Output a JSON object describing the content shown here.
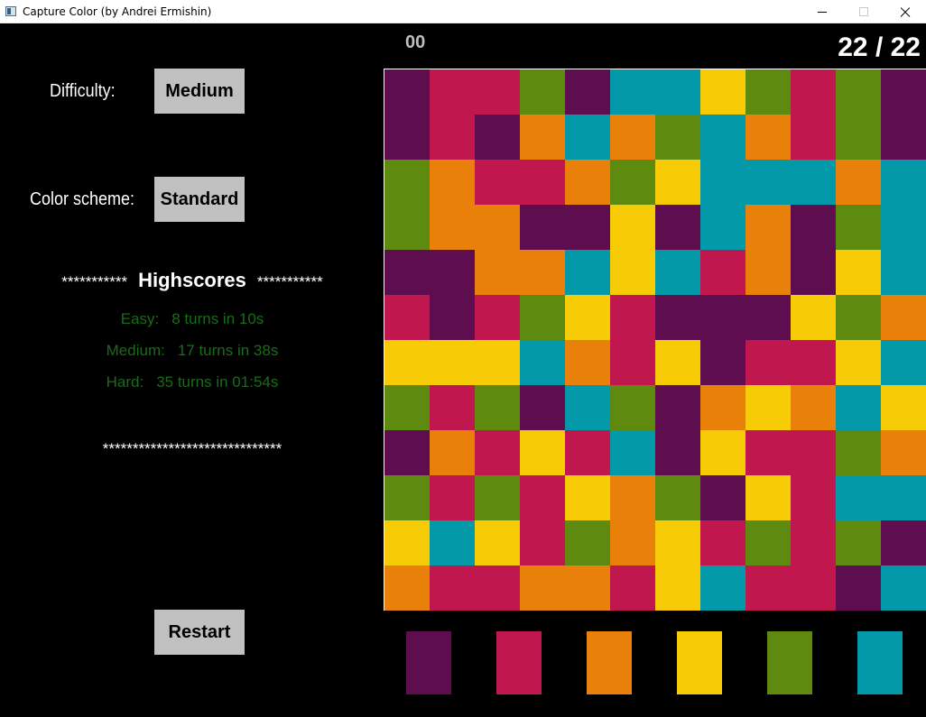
{
  "window": {
    "title": "Capture Color (by Andrei Ermishin)"
  },
  "settings": {
    "difficulty_label": "Difficulty:",
    "difficulty_value": "Medium",
    "color_scheme_label": "Color scheme:",
    "color_scheme_value": "Standard"
  },
  "highscores": {
    "stars_left": "***********",
    "title": "Highscores",
    "stars_right": "***********",
    "easy_label": "Easy:",
    "easy_value": "8 turns in 10s",
    "medium_label": "Medium:",
    "medium_value": "17 turns in 38s",
    "hard_label": "Hard:",
    "hard_value": "35 turns in 01:54s",
    "footer_stars": "******************************"
  },
  "controls": {
    "restart_label": "Restart"
  },
  "status": {
    "time": "00",
    "turns": "22 / 22"
  },
  "colors": {
    "P": "#5e0d4f",
    "R": "#c0174f",
    "O": "#e8800a",
    "Y": "#f7cb05",
    "G": "#5f8a10",
    "C": "#0499a8"
  },
  "palette": [
    "P",
    "R",
    "O",
    "Y",
    "G",
    "C"
  ],
  "board": [
    "PRRGPCCYGRGP",
    "PRPOCOGCORGP",
    "GORROGYCCCOC",
    "GOOPPYPCOPGC",
    "PPOOCYCROPYC",
    "RPRGYRPPPYGO",
    "YYYCORYPRRYC",
    "GRGPCGPOYOCY",
    "PORYRCPYRRGO",
    "GRGRYOGPYRCC",
    "YCYRGOYRGRGP",
    "ORROORYCRRPC"
  ]
}
